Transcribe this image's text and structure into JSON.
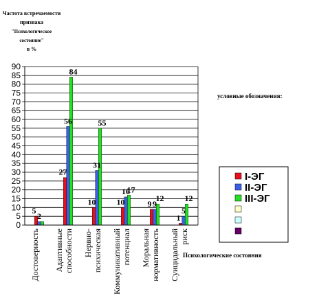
{
  "chart_data": {
    "type": "bar",
    "title_lines": [
      "Частота встречаемости",
      "признака",
      "\"Психологическое",
      "состояние\"",
      "в %"
    ],
    "categories": [
      [
        "Достоверность"
      ],
      [
        "Адаптивные",
        "способности"
      ],
      [
        "Нервно-",
        "психическая"
      ],
      [
        "Коммуникативный",
        "потенциал"
      ],
      [
        "Моральная",
        "нормативность"
      ],
      [
        "Суицидальный",
        "риск"
      ]
    ],
    "series": [
      {
        "name": "I-ЭГ",
        "color": "#e8101a",
        "values": [
          5,
          27,
          10,
          10,
          9,
          1
        ]
      },
      {
        "name": "II-ЭГ",
        "color": "#3a5fe8",
        "values": [
          2,
          56,
          31,
          16,
          9,
          5
        ]
      },
      {
        "name": "III-ЭГ",
        "color": "#22e022",
        "values": [
          2,
          84,
          55,
          17,
          12,
          12
        ]
      }
    ],
    "data_labels": [
      [
        "5",
        "27",
        "10",
        "10",
        "9",
        "1"
      ],
      [
        "2",
        "56",
        "31",
        "16",
        "9",
        "5"
      ],
      [
        "",
        "84",
        "55",
        "17",
        "12",
        "12"
      ]
    ],
    "extra_legend_colors": [
      "#ffffcc",
      "#ccffff",
      "#660066"
    ],
    "ylim": [
      0,
      90
    ],
    "yticks": [
      0,
      5,
      10,
      15,
      20,
      25,
      30,
      35,
      40,
      45,
      50,
      55,
      60,
      65,
      70,
      75,
      80,
      85,
      90
    ],
    "grid": true,
    "legend_heading": "условные обозначения:",
    "legend_position": "right",
    "xlabel": "Психологические состояния"
  }
}
